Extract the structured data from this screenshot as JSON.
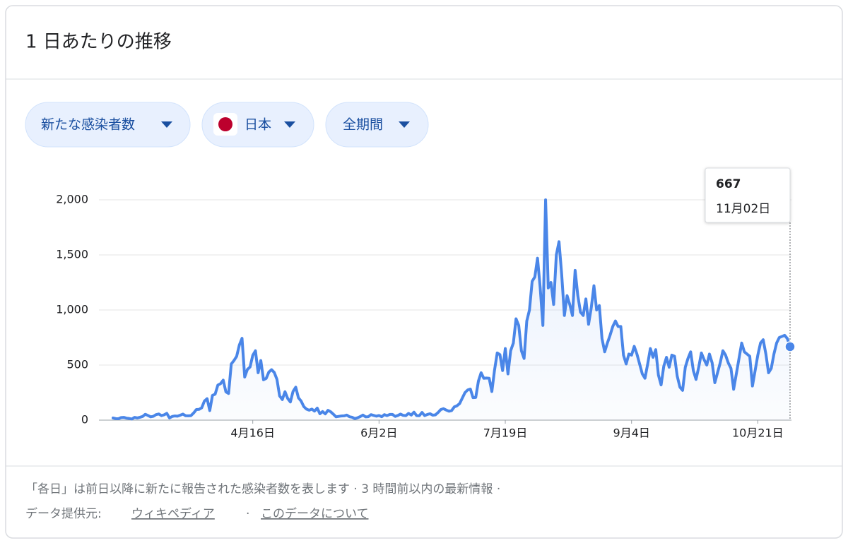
{
  "header": {
    "title": "1 日あたりの推移"
  },
  "filters": [
    "新たな感染者数",
    "日本",
    "全期間"
  ],
  "chart_data": {
    "type": "line",
    "color": "#4a86e8",
    "categories": [
      null,
      null,
      null,
      null,
      null,
      null,
      null,
      null,
      null,
      null,
      null,
      null,
      null,
      null,
      null,
      null,
      null,
      null,
      null,
      null,
      null,
      null,
      null,
      null,
      null,
      null,
      null,
      null,
      null,
      null,
      null,
      null,
      null,
      null,
      null,
      null,
      null,
      null,
      null,
      null,
      null,
      null,
      null,
      null,
      null,
      null,
      null,
      null,
      null,
      null,
      null,
      null,
      "4月16日",
      null,
      null,
      null,
      null,
      null,
      null,
      null,
      null,
      null,
      null,
      null,
      null,
      null,
      null,
      null,
      null,
      null,
      null,
      null,
      null,
      null,
      null,
      null,
      null,
      null,
      null,
      null,
      null,
      null,
      null,
      null,
      null,
      null,
      null,
      null,
      null,
      null,
      null,
      null,
      null,
      null,
      null,
      null,
      null,
      null,
      null,
      "6月2日",
      null,
      null,
      null,
      null,
      null,
      null,
      null,
      null,
      null,
      null,
      null,
      null,
      null,
      null,
      null,
      null,
      null,
      null,
      null,
      null,
      null,
      null,
      null,
      null,
      null,
      null,
      null,
      null,
      null,
      null,
      null,
      null,
      null,
      null,
      null,
      null,
      null,
      null,
      null,
      null,
      null,
      null,
      null,
      null,
      null,
      null,
      "7月19日",
      null,
      null,
      null,
      null,
      null,
      null,
      null,
      null,
      null,
      null,
      null,
      null,
      null,
      null,
      null,
      null,
      null,
      null,
      null,
      null,
      null,
      null,
      null,
      null,
      null,
      null,
      null,
      null,
      null,
      null,
      null,
      null,
      null,
      null,
      null,
      null,
      null,
      null,
      null,
      null,
      null,
      null,
      null,
      null,
      null,
      null,
      "9月4日",
      null,
      null,
      null,
      null,
      null,
      null,
      null,
      null,
      null,
      null,
      null,
      null,
      null,
      null,
      null,
      null,
      null,
      null,
      null,
      null,
      null,
      null,
      null,
      null,
      null,
      null,
      null,
      null,
      null,
      null,
      null,
      null,
      null,
      null,
      null,
      null,
      null,
      null,
      null,
      null,
      null,
      null,
      null,
      null,
      null,
      null,
      "10月21日",
      null,
      null,
      null,
      null,
      null,
      null,
      null,
      null,
      null,
      null,
      null,
      null
    ],
    "values": [
      20,
      14,
      13,
      23,
      25,
      18,
      15,
      10,
      25,
      20,
      26,
      33,
      53,
      42,
      30,
      35,
      50,
      56,
      41,
      48,
      62,
      20,
      33,
      38,
      36,
      45,
      55,
      40,
      39,
      41,
      65,
      96,
      98,
      112,
      173,
      195,
      87,
      225,
      236,
      318,
      331,
      363,
      257,
      242,
      510,
      541,
      579,
      681,
      743,
      391,
      460,
      483,
      588,
      630,
      430,
      541,
      366,
      379,
      437,
      458,
      433,
      370,
      220,
      187,
      258,
      197,
      165,
      261,
      299,
      203,
      173,
      123,
      100,
      90,
      100,
      82,
      109,
      58,
      78,
      57,
      89,
      76,
      54,
      30,
      34,
      38,
      39,
      46,
      31,
      26,
      14,
      21,
      32,
      46,
      30,
      31,
      50,
      43,
      36,
      42,
      31,
      50,
      41,
      52,
      52,
      34,
      42,
      55,
      43,
      41,
      61,
      46,
      72,
      41,
      40,
      70,
      41,
      52,
      58,
      45,
      48,
      70,
      96,
      104,
      92,
      81,
      86,
      120,
      130,
      150,
      200,
      250,
      274,
      282,
      204,
      206,
      355,
      430,
      380,
      382,
      380,
      260,
      455,
      610,
      595,
      450,
      650,
      420,
      630,
      700,
      920,
      860,
      630,
      560,
      900,
      1000,
      1260,
      1300,
      1470,
      1200,
      860,
      2000,
      1200,
      1250,
      1050,
      1500,
      1620,
      1320,
      950,
      1130,
      1050,
      950,
      1360,
      1130,
      980,
      950,
      1100,
      870,
      1020,
      1220,
      1000,
      1040,
      740,
      620,
      700,
      770,
      850,
      900,
      850,
      850,
      590,
      510,
      600,
      590,
      670,
      600,
      510,
      420,
      380,
      510,
      650,
      570,
      640,
      410,
      320,
      490,
      570,
      480,
      590,
      580,
      400,
      300,
      270,
      480,
      560,
      620,
      450,
      370,
      480,
      610,
      550,
      500,
      600,
      520,
      340,
      430,
      520,
      630,
      590,
      520,
      470,
      280,
      420,
      560,
      700,
      620,
      600,
      580,
      310,
      450,
      590,
      700,
      730,
      600,
      430,
      470,
      600,
      700,
      750,
      760,
      770,
      740,
      667
    ],
    "ylim": [
      0,
      2000
    ],
    "yticks": [
      0,
      500,
      {
        "value": 1000,
        "label": "1,000"
      },
      {
        "value": 1500,
        "label": "1,500"
      },
      {
        "value": 2000,
        "label": "2,000"
      }
    ],
    "grid": true,
    "tooltip": {
      "value": 667,
      "date": "11月02日"
    }
  },
  "footer": {
    "note": "「各日」は前日以降に新たに報告された感染者数を表します · 3 時間前以内の最新情報 ·",
    "source_label": "データ提供元:",
    "links": [
      "ウィキペディア",
      "このデータについて"
    ],
    "separator": "·"
  }
}
